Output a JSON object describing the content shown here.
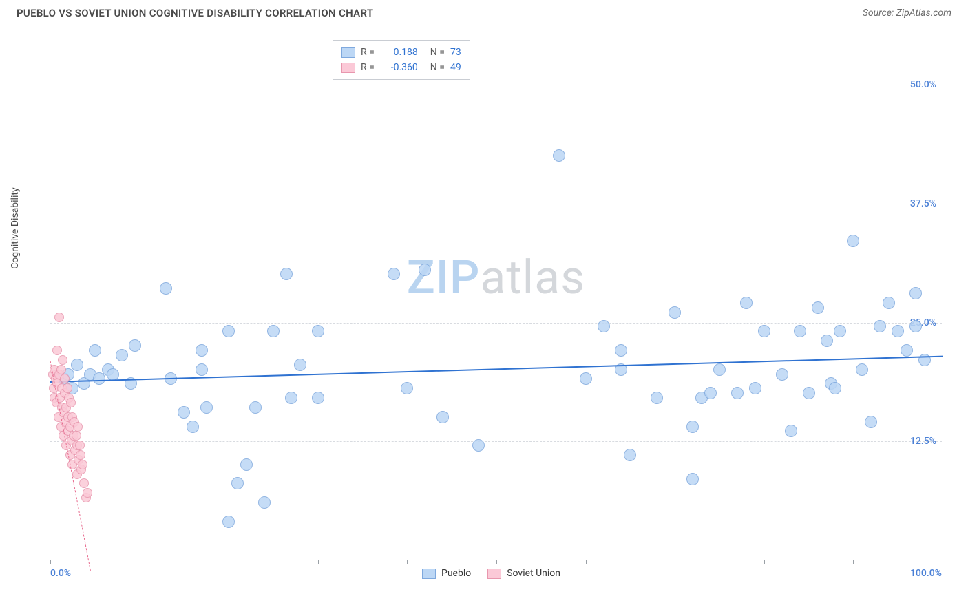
{
  "header": {
    "title": "PUEBLO VS SOVIET UNION COGNITIVE DISABILITY CORRELATION CHART",
    "source": "Source: ZipAtlas.com"
  },
  "chart": {
    "type": "scatter",
    "ylabel": "Cognitive Disability",
    "watermark_zip": "ZIP",
    "watermark_atlas": "atlas",
    "watermark_color_zip": "#b9d4f0",
    "watermark_color_atlas": "#d4d7db",
    "background_color": "#ffffff",
    "grid_color": "#d8dbe0",
    "axis_color": "#9aa0a6",
    "xlim": [
      0,
      100
    ],
    "ylim": [
      0,
      55
    ],
    "ytick_positions": [
      12.5,
      25.0,
      37.5,
      50.0
    ],
    "ytick_labels": [
      "12.5%",
      "25.0%",
      "37.5%",
      "50.0%"
    ],
    "ytick_color": "#4a80d6",
    "xtick_positions": [
      0,
      10,
      20,
      30,
      40,
      50,
      60,
      70,
      80,
      90,
      100
    ],
    "xaxis_label_left": "0.0%",
    "xaxis_label_right": "100.0%",
    "xaxis_label_color": "#4a80d6",
    "series": [
      {
        "name": "Pueblo",
        "fill_color": "#bcd7f5",
        "stroke_color": "#7fa9de",
        "marker_radius": 9,
        "trend_color": "#2f72d1",
        "trend_width": 2.5,
        "trend_start": [
          0,
          18.8
        ],
        "trend_end": [
          100,
          21.5
        ],
        "R": "0.188",
        "N": "73",
        "points": [
          [
            1.5,
            19
          ],
          [
            2,
            19.5
          ],
          [
            2.5,
            18
          ],
          [
            3,
            20.5
          ],
          [
            3.8,
            18.5
          ],
          [
            4.5,
            19.5
          ],
          [
            5,
            22
          ],
          [
            5.5,
            19
          ],
          [
            6.5,
            20
          ],
          [
            7,
            19.5
          ],
          [
            8,
            21.5
          ],
          [
            9,
            18.5
          ],
          [
            9.5,
            22.5
          ],
          [
            13,
            28.5
          ],
          [
            15,
            15.5
          ],
          [
            16,
            14
          ],
          [
            13.5,
            19
          ],
          [
            17,
            22
          ],
          [
            17,
            20
          ],
          [
            17.5,
            16
          ],
          [
            20,
            4
          ],
          [
            20,
            24
          ],
          [
            21,
            8
          ],
          [
            22,
            10
          ],
          [
            23,
            16
          ],
          [
            24,
            6
          ],
          [
            25,
            24
          ],
          [
            26.5,
            30
          ],
          [
            27,
            17
          ],
          [
            28,
            20.5
          ],
          [
            30,
            17
          ],
          [
            30,
            24
          ],
          [
            38.5,
            30
          ],
          [
            40,
            18
          ],
          [
            42,
            30.5
          ],
          [
            44,
            15
          ],
          [
            48,
            12
          ],
          [
            57,
            42.5
          ],
          [
            60,
            19
          ],
          [
            62,
            24.5
          ],
          [
            64,
            20
          ],
          [
            64,
            22
          ],
          [
            65,
            11
          ],
          [
            68,
            17
          ],
          [
            70,
            26
          ],
          [
            72,
            8.5
          ],
          [
            72,
            14
          ],
          [
            73,
            17
          ],
          [
            74,
            17.5
          ],
          [
            75,
            20
          ],
          [
            77,
            17.5
          ],
          [
            78,
            27
          ],
          [
            79,
            18
          ],
          [
            80,
            24
          ],
          [
            82,
            19.5
          ],
          [
            83,
            13.5
          ],
          [
            84,
            24
          ],
          [
            85,
            17.5
          ],
          [
            86,
            26.5
          ],
          [
            87,
            23
          ],
          [
            87.5,
            18.5
          ],
          [
            88,
            18
          ],
          [
            88.5,
            24
          ],
          [
            90,
            33.5
          ],
          [
            91,
            20
          ],
          [
            92,
            14.5
          ],
          [
            93,
            24.5
          ],
          [
            94,
            27
          ],
          [
            95,
            24
          ],
          [
            96,
            22
          ],
          [
            97,
            24.5
          ],
          [
            97,
            28
          ],
          [
            98,
            21
          ]
        ]
      },
      {
        "name": "Soviet Union",
        "fill_color": "#fbc9d7",
        "stroke_color": "#e897ae",
        "marker_radius": 7,
        "trend_color": "#e86a8e",
        "trend_width": 1.5,
        "trend_dash": true,
        "trend_start": [
          0,
          21
        ],
        "trend_end": [
          4.5,
          -1
        ],
        "R": "-0.360",
        "N": "49",
        "points": [
          [
            0.3,
            19.5
          ],
          [
            0.4,
            18
          ],
          [
            0.5,
            20
          ],
          [
            0.5,
            17
          ],
          [
            0.6,
            19
          ],
          [
            0.7,
            16.5
          ],
          [
            0.8,
            18.5
          ],
          [
            0.8,
            22
          ],
          [
            0.9,
            15
          ],
          [
            1,
            19.5
          ],
          [
            1,
            25.5
          ],
          [
            1.1,
            17
          ],
          [
            1.2,
            20
          ],
          [
            1.2,
            14
          ],
          [
            1.3,
            16
          ],
          [
            1.3,
            18
          ],
          [
            1.4,
            21
          ],
          [
            1.5,
            13
          ],
          [
            1.5,
            15.5
          ],
          [
            1.6,
            17.5
          ],
          [
            1.6,
            19
          ],
          [
            1.7,
            14.5
          ],
          [
            1.8,
            16
          ],
          [
            1.8,
            12
          ],
          [
            1.9,
            18
          ],
          [
            2,
            15
          ],
          [
            2,
            13.5
          ],
          [
            2.1,
            17
          ],
          [
            2.2,
            11
          ],
          [
            2.2,
            14
          ],
          [
            2.3,
            16.5
          ],
          [
            2.4,
            12.5
          ],
          [
            2.5,
            15
          ],
          [
            2.5,
            10
          ],
          [
            2.6,
            13
          ],
          [
            2.7,
            14.5
          ],
          [
            2.8,
            11.5
          ],
          [
            2.9,
            13
          ],
          [
            3,
            9
          ],
          [
            3,
            12
          ],
          [
            3.1,
            14
          ],
          [
            3.2,
            10.5
          ],
          [
            3.3,
            12
          ],
          [
            3.4,
            11
          ],
          [
            3.5,
            9.5
          ],
          [
            3.6,
            10
          ],
          [
            3.8,
            8
          ],
          [
            4,
            6.5
          ],
          [
            4.2,
            7
          ]
        ]
      }
    ],
    "legend_stats": {
      "r_label": "R =",
      "n_label": "N =",
      "value_color": "#2f72d1"
    },
    "bottom_legend_items": [
      "Pueblo",
      "Soviet Union"
    ]
  }
}
